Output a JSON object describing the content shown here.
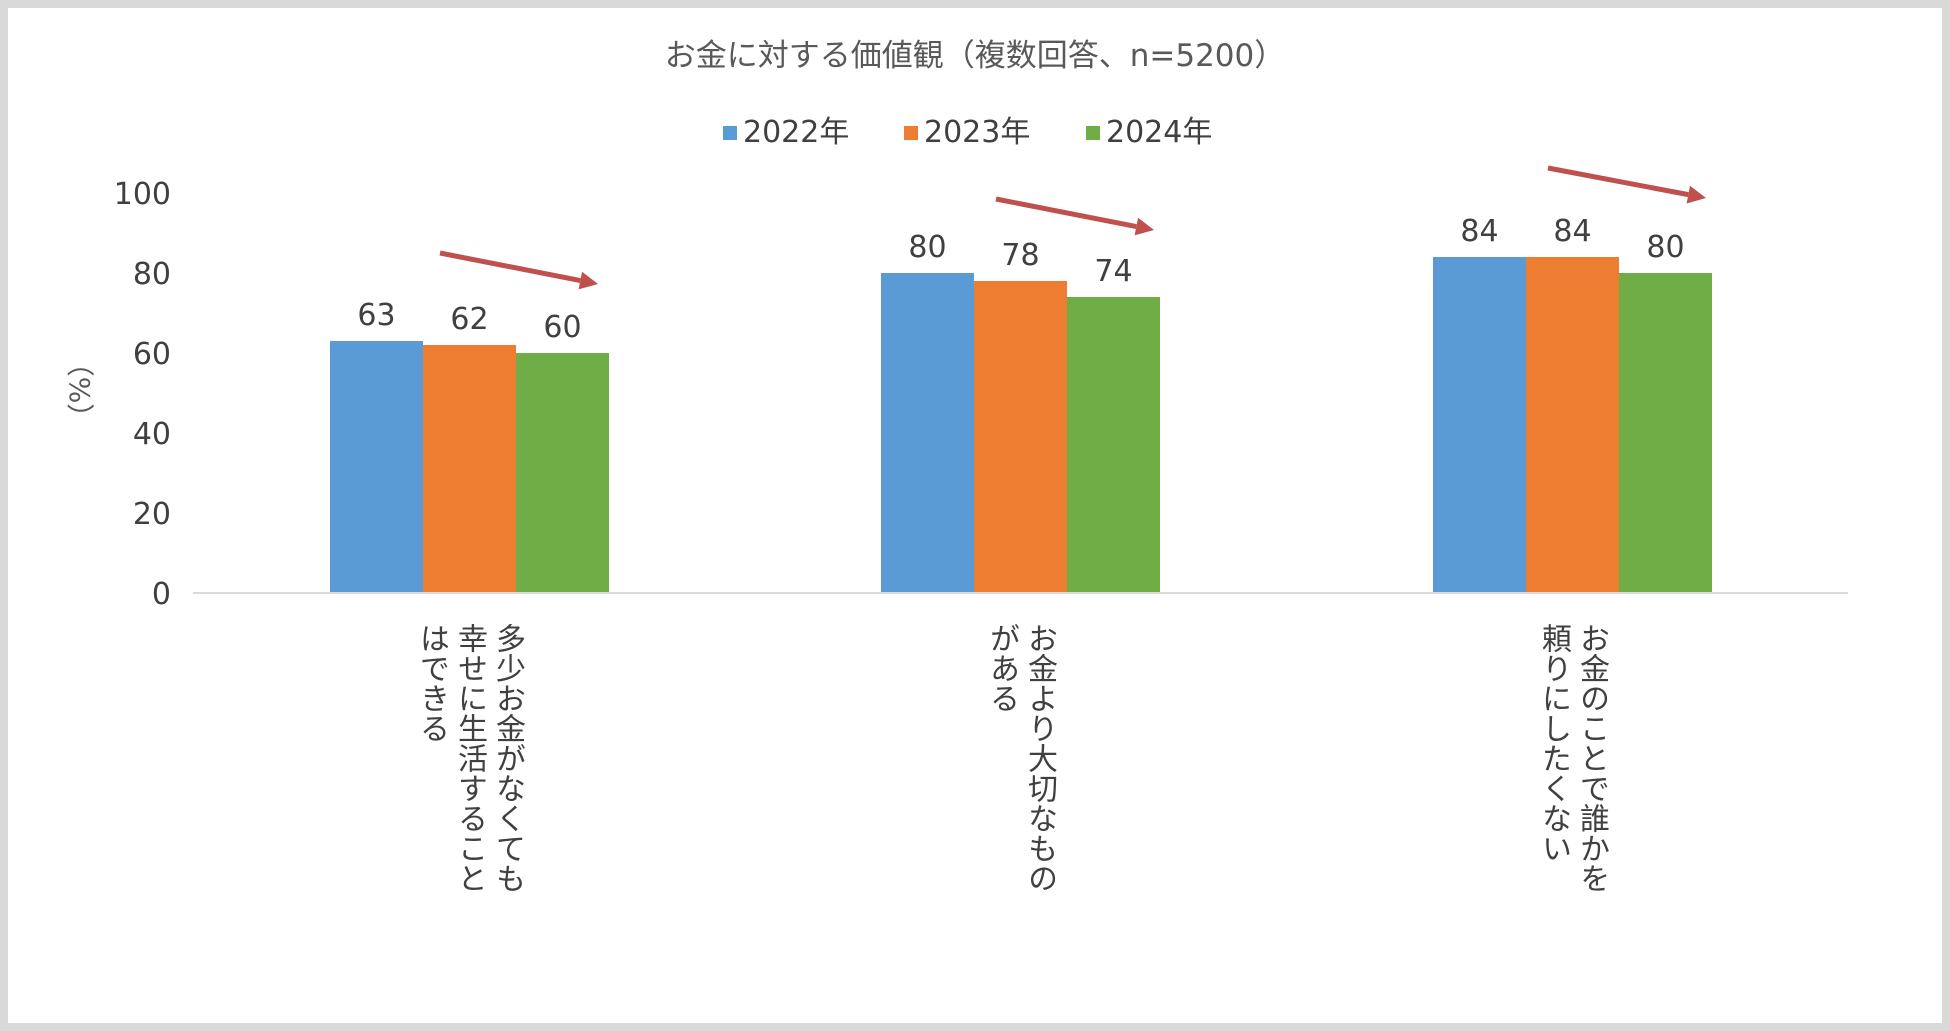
{
  "chart_data": {
    "type": "bar",
    "title": "お金に対する価値観（複数回答、n=5200）",
    "ylabel": "（%）",
    "ylim": [
      0,
      100
    ],
    "yticks": [
      0,
      20,
      40,
      60,
      80,
      100
    ],
    "grid": false,
    "legend_position": "top",
    "categories": [
      "多少お金がなくても幸せに生活することはできる",
      "お金より大切なものがある",
      "お金のことで誰かを頼りにしたくない"
    ],
    "category_label_lines": [
      [
        "多少お金がなくても",
        "幸せに生活すること",
        "はできる"
      ],
      [
        "お金より大切なもの",
        "がある"
      ],
      [
        "お金のことで誰かを",
        "頼りにしたくない"
      ]
    ],
    "series": [
      {
        "name": "2022年",
        "values": [
          63,
          80,
          84
        ],
        "color": "#5b9bd5"
      },
      {
        "name": "2023年",
        "values": [
          62,
          78,
          84
        ],
        "color": "#ed7d31"
      },
      {
        "name": "2024年",
        "values": [
          60,
          74,
          80
        ],
        "color": "#70ad47"
      }
    ],
    "annotation_arrow_color": "#c0504d",
    "axis_color": "#d9d9d9",
    "text_color": "#404040"
  }
}
